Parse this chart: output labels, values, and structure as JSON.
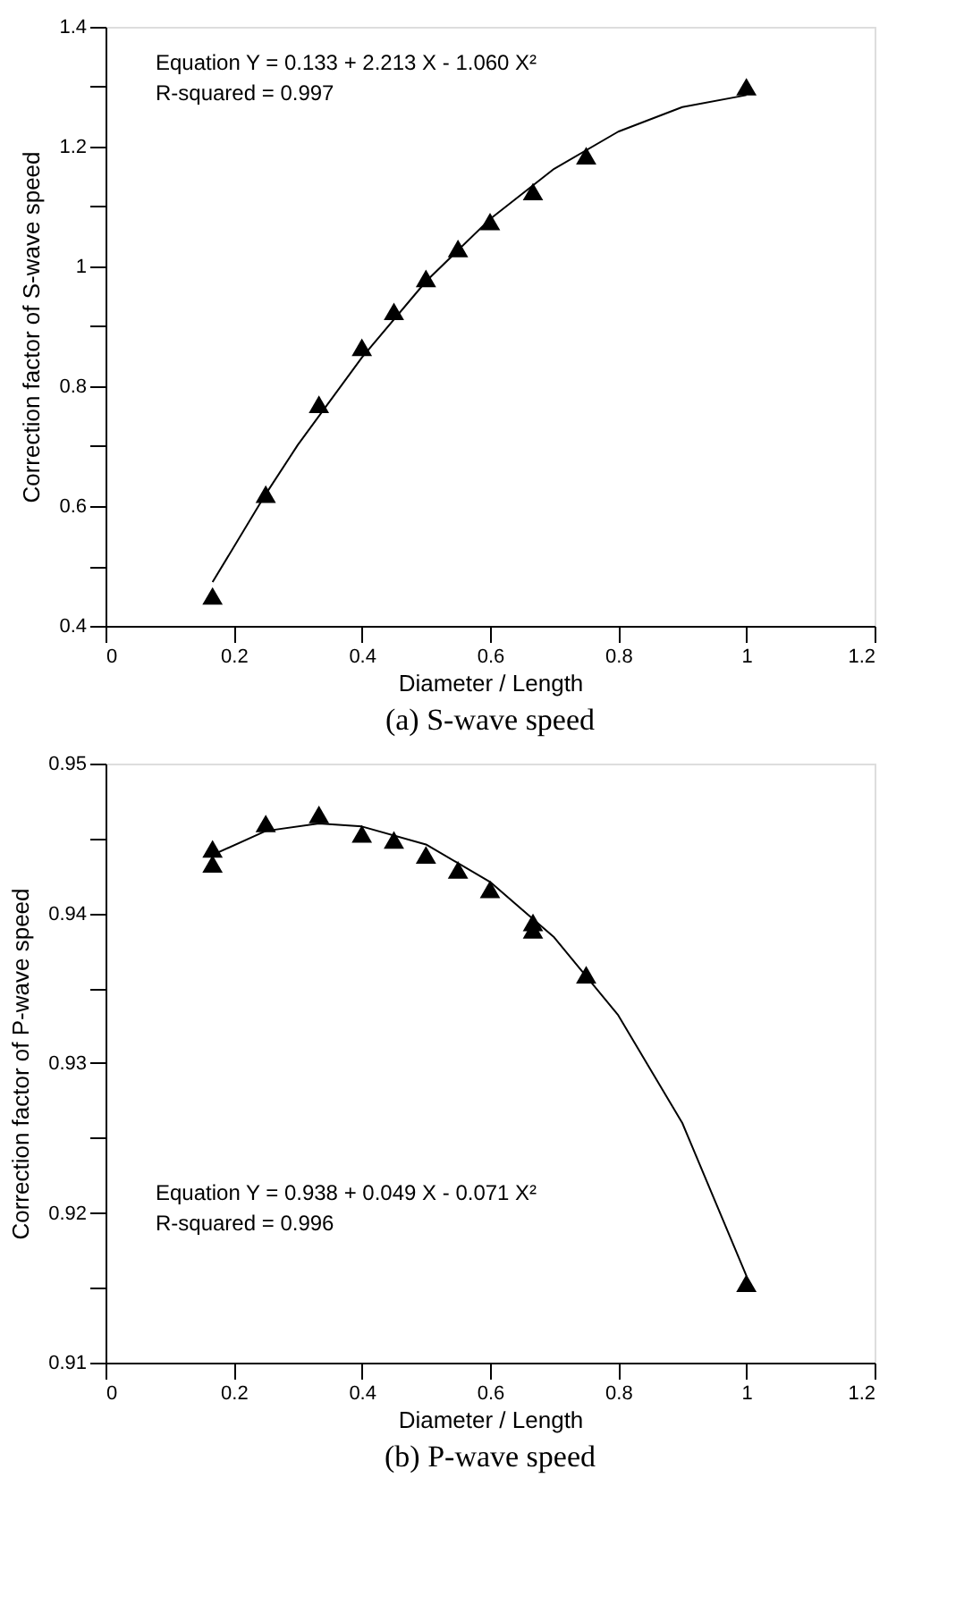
{
  "chart_data": [
    {
      "type": "scatter",
      "title": "(a) S-wave speed",
      "xlabel": "Diameter / Length",
      "ylabel": "Correction factor of S-wave speed",
      "annotations": [
        "Equation  Y = 0.133 + 2.213 X - 1.060 X²",
        "R-squared = 0.997"
      ],
      "xlim": [
        0,
        1.2
      ],
      "xticks": [
        0,
        0.2,
        0.4,
        0.6,
        0.8,
        1,
        1.2
      ],
      "ylim": [
        0.4,
        1.4
      ],
      "yticks": [
        0.4,
        {
          "value": 0.5,
          "label": null
        },
        0.6,
        {
          "value": 0.7,
          "label": null
        },
        0.8,
        {
          "value": 0.9,
          "label": null
        },
        1,
        {
          "value": 1.1,
          "label": null
        },
        1.2,
        {
          "value": 1.3,
          "label": null
        },
        1.4
      ],
      "series": [
        {
          "type": "scatter",
          "marker": "triangle",
          "color": "#000000",
          "x": [
            0.167,
            0.25,
            0.333,
            0.4,
            0.45,
            0.5,
            0.55,
            0.6,
            0.667,
            0.75,
            1.0
          ],
          "values": [
            0.45,
            0.62,
            0.77,
            0.865,
            0.925,
            0.98,
            1.03,
            1.075,
            1.125,
            1.185,
            1.3
          ]
        },
        {
          "type": "line",
          "color": "#000000",
          "line_style": "solid",
          "x": [
            0.167,
            0.25,
            0.3,
            0.4,
            0.5,
            0.6,
            0.7,
            0.8,
            0.9,
            1.0
          ],
          "values": [
            0.473,
            0.62,
            0.702,
            0.848,
            0.975,
            1.079,
            1.163,
            1.225,
            1.266,
            1.286
          ]
        }
      ]
    },
    {
      "type": "scatter",
      "title": "(b) P-wave speed",
      "xlabel": "Diameter / Length",
      "ylabel": "Correction factor of P-wave speed",
      "annotations": [
        "Equation  Y = 0.938 + 0.049 X - 0.071 X²",
        "R-squared = 0.996"
      ],
      "xlim": [
        0,
        1.2
      ],
      "xticks": [
        0,
        0.2,
        0.4,
        0.6,
        0.8,
        1,
        1.2
      ],
      "ylim": [
        0.91,
        0.95
      ],
      "yticks": [
        0.91,
        {
          "value": 0.915,
          "label": null
        },
        0.92,
        {
          "value": 0.925,
          "label": null
        },
        0.93,
        {
          "value": 0.935,
          "label": null
        },
        0.94,
        {
          "value": 0.945,
          "label": null
        },
        0.95
      ],
      "series": [
        {
          "type": "scatter",
          "marker": "triangle",
          "color": "#000000",
          "x": [
            0.167,
            0.167,
            0.25,
            0.333,
            0.4,
            0.45,
            0.5,
            0.55,
            0.6,
            0.667,
            0.667,
            0.75,
            1.0
          ],
          "values": [
            0.9443,
            0.9433,
            0.946,
            0.9466,
            0.9453,
            0.9449,
            0.9439,
            0.9429,
            0.9416,
            0.9394,
            0.9389,
            0.9359,
            0.9153
          ]
        },
        {
          "type": "line",
          "color": "#000000",
          "line_style": "solid",
          "x": [
            0.167,
            0.25,
            0.333,
            0.4,
            0.5,
            0.6,
            0.7,
            0.8,
            0.9,
            1.0
          ],
          "values": [
            0.9439,
            0.9455,
            0.946,
            0.9458,
            0.9446,
            0.9421,
            0.9384,
            0.9332,
            0.926,
            0.9158
          ]
        }
      ]
    }
  ]
}
